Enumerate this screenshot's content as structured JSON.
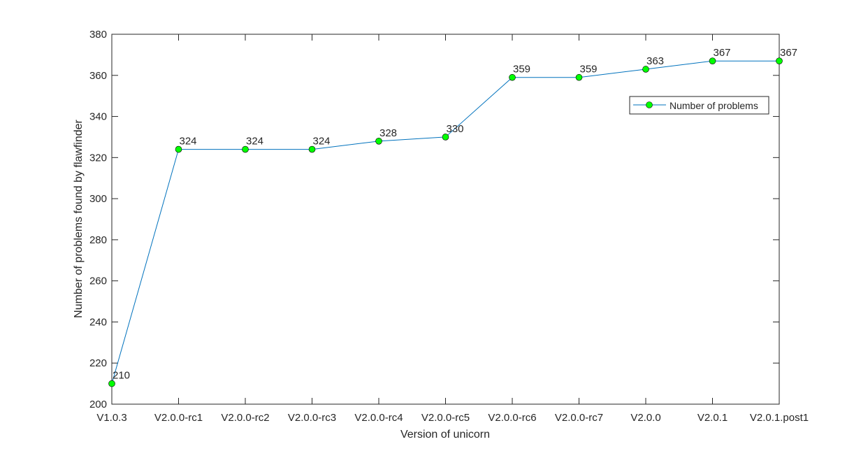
{
  "chart_data": {
    "type": "line",
    "xlabel": "Version of unicorn",
    "ylabel": "Number of problems found by flawfinder",
    "categories": [
      "V1.0.3",
      "V2.0.0-rc1",
      "V2.0.0-rc2",
      "V2.0.0-rc3",
      "V2.0.0-rc4",
      "V2.0.0-rc5",
      "V2.0.0-rc6",
      "V2.0.0-rc7",
      "V2.0.0",
      "V2.0.1",
      "V2.0.1.post1"
    ],
    "series": [
      {
        "name": "Number of problems",
        "values": [
          210,
          324,
          324,
          324,
          328,
          330,
          359,
          359,
          363,
          367,
          367
        ],
        "line_color": "#0072BD",
        "marker_color": "#00FF00"
      }
    ],
    "data_labels": [
      "210",
      "324",
      "324",
      "324",
      "328",
      "330",
      "359",
      "359",
      "363",
      "367",
      "367"
    ],
    "ylim": [
      200,
      380
    ],
    "yticks": [
      200,
      220,
      240,
      260,
      280,
      300,
      320,
      340,
      360,
      380
    ],
    "grid": false,
    "legend": {
      "position": "top-right",
      "entries": [
        "Number of problems"
      ]
    }
  }
}
